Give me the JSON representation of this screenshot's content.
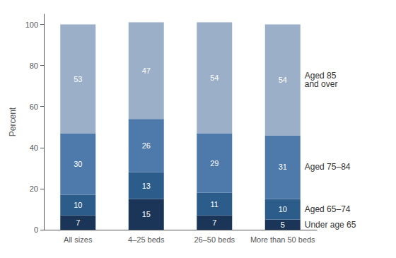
{
  "chart_data": {
    "type": "bar",
    "stacked": true,
    "data_labels": true,
    "grid": false,
    "categories": [
      "All sizes",
      "4–25 beds",
      "26–50 beds",
      "More than 50 beds"
    ],
    "series": [
      {
        "name": "Under age 65",
        "color": "#1b3558",
        "values": [
          7,
          15,
          7,
          5
        ]
      },
      {
        "name": "Aged 65–74",
        "color": "#2b5c8a",
        "values": [
          10,
          13,
          11,
          10
        ]
      },
      {
        "name": "Aged 75–84",
        "color": "#4e7aab",
        "values": [
          30,
          26,
          29,
          31
        ]
      },
      {
        "name": "Aged 85\nand over",
        "color": "#9bafc8",
        "values": [
          53,
          47,
          54,
          54
        ]
      }
    ],
    "ylabel": "Percent",
    "ylim": [
      0,
      105
    ],
    "yticks": [
      0,
      20,
      40,
      60,
      80,
      100
    ]
  }
}
